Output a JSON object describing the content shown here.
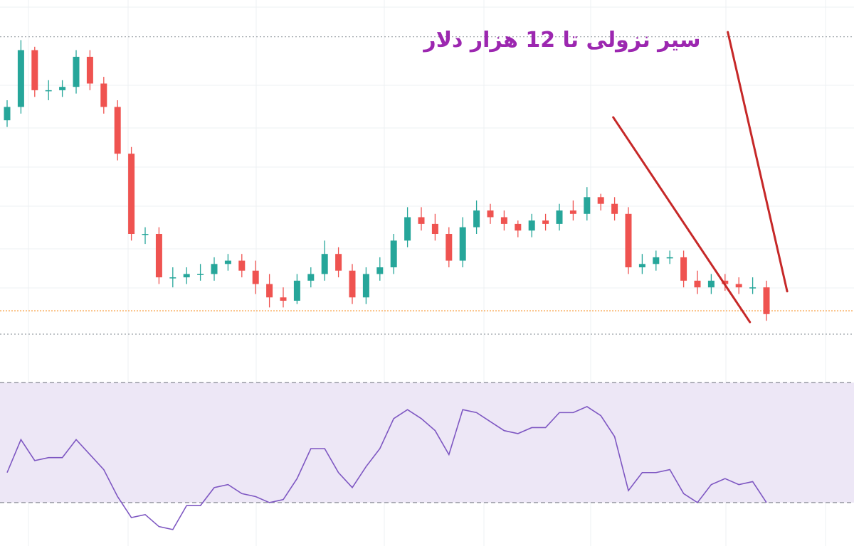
{
  "chart_data": [
    {
      "type": "candlestick",
      "annotation": "سیر نزولی تا 12 هزار دلار",
      "annotation_color": "#9c27b0",
      "ylim": [
        0,
        100
      ],
      "up_color": "#26a69a",
      "down_color": "#ef5350",
      "open": [
        64,
        68,
        85,
        73,
        73,
        74,
        83,
        75,
        68,
        54,
        30,
        30,
        17,
        17,
        18,
        18,
        21,
        22,
        19,
        15,
        11,
        10,
        16,
        18,
        24,
        19,
        11,
        18,
        20,
        28,
        35,
        33,
        30,
        22,
        32,
        37,
        35,
        33,
        31,
        34,
        33,
        37,
        36,
        41,
        39,
        36,
        20,
        21,
        23,
        23,
        16,
        14,
        16,
        15,
        14,
        14
      ],
      "high": [
        70,
        88,
        86,
        76,
        76,
        85,
        85,
        77,
        70,
        56,
        32,
        32,
        20,
        20,
        21,
        23,
        24,
        24,
        22,
        18,
        14,
        18,
        20,
        28,
        26,
        21,
        20,
        23,
        30,
        38,
        38,
        36,
        32,
        35,
        40,
        39,
        37,
        34,
        36,
        36,
        39,
        40,
        44,
        42,
        41,
        38,
        24,
        25,
        25,
        25,
        19,
        18,
        18,
        17,
        17,
        16
      ],
      "low": [
        62,
        66,
        71,
        70,
        71,
        72,
        73,
        66,
        52,
        28,
        27,
        15,
        14,
        15,
        16,
        16,
        19,
        17,
        12,
        8,
        8,
        9,
        14,
        16,
        17,
        9,
        9,
        16,
        18,
        26,
        31,
        28,
        20,
        20,
        30,
        33,
        31,
        29,
        29,
        31,
        31,
        34,
        34,
        37,
        34,
        18,
        18,
        19,
        21,
        14,
        12,
        12,
        13,
        12,
        12,
        4
      ],
      "close": [
        68,
        85,
        73,
        73,
        74,
        83,
        75,
        68,
        54,
        30,
        30,
        17,
        17,
        18,
        18,
        21,
        22,
        19,
        15,
        11,
        10,
        16,
        18,
        24,
        19,
        11,
        18,
        20,
        28,
        35,
        33,
        30,
        22,
        32,
        37,
        35,
        33,
        31,
        34,
        33,
        37,
        36,
        41,
        39,
        36,
        20,
        21,
        23,
        23,
        16,
        14,
        16,
        15,
        14,
        14,
        6
      ],
      "levels": [
        89,
        0
      ],
      "level_color": "#9aa0a6",
      "price_line": 7,
      "price_line_color": "#f57c00",
      "trend_lines": [
        {
          "x": [
            43.9,
            53.8
          ],
          "y": [
            64.9,
            3.6
          ]
        },
        {
          "x": [
            52.2,
            56.5
          ],
          "y": [
            90.4,
            12.8
          ]
        }
      ],
      "trend_color": "#c62828"
    },
    {
      "type": "line",
      "ylim": [
        16,
        80
      ],
      "bands": [
        30,
        70
      ],
      "band_fill": "#ede7f6",
      "band_line_color": "#787b86",
      "color": "#7e57c2",
      "values": [
        40,
        51,
        44,
        45,
        45,
        51,
        46,
        41,
        32,
        25,
        26,
        22,
        21,
        29,
        29,
        35,
        36,
        33,
        32,
        30,
        31,
        38,
        48,
        48,
        40,
        35,
        42,
        48,
        58,
        61,
        58,
        54,
        46,
        61,
        60,
        57,
        54,
        53,
        55,
        55,
        60,
        60,
        62,
        59,
        52,
        34,
        40,
        40,
        41,
        33,
        30,
        36,
        38,
        36,
        37,
        30
      ]
    }
  ]
}
